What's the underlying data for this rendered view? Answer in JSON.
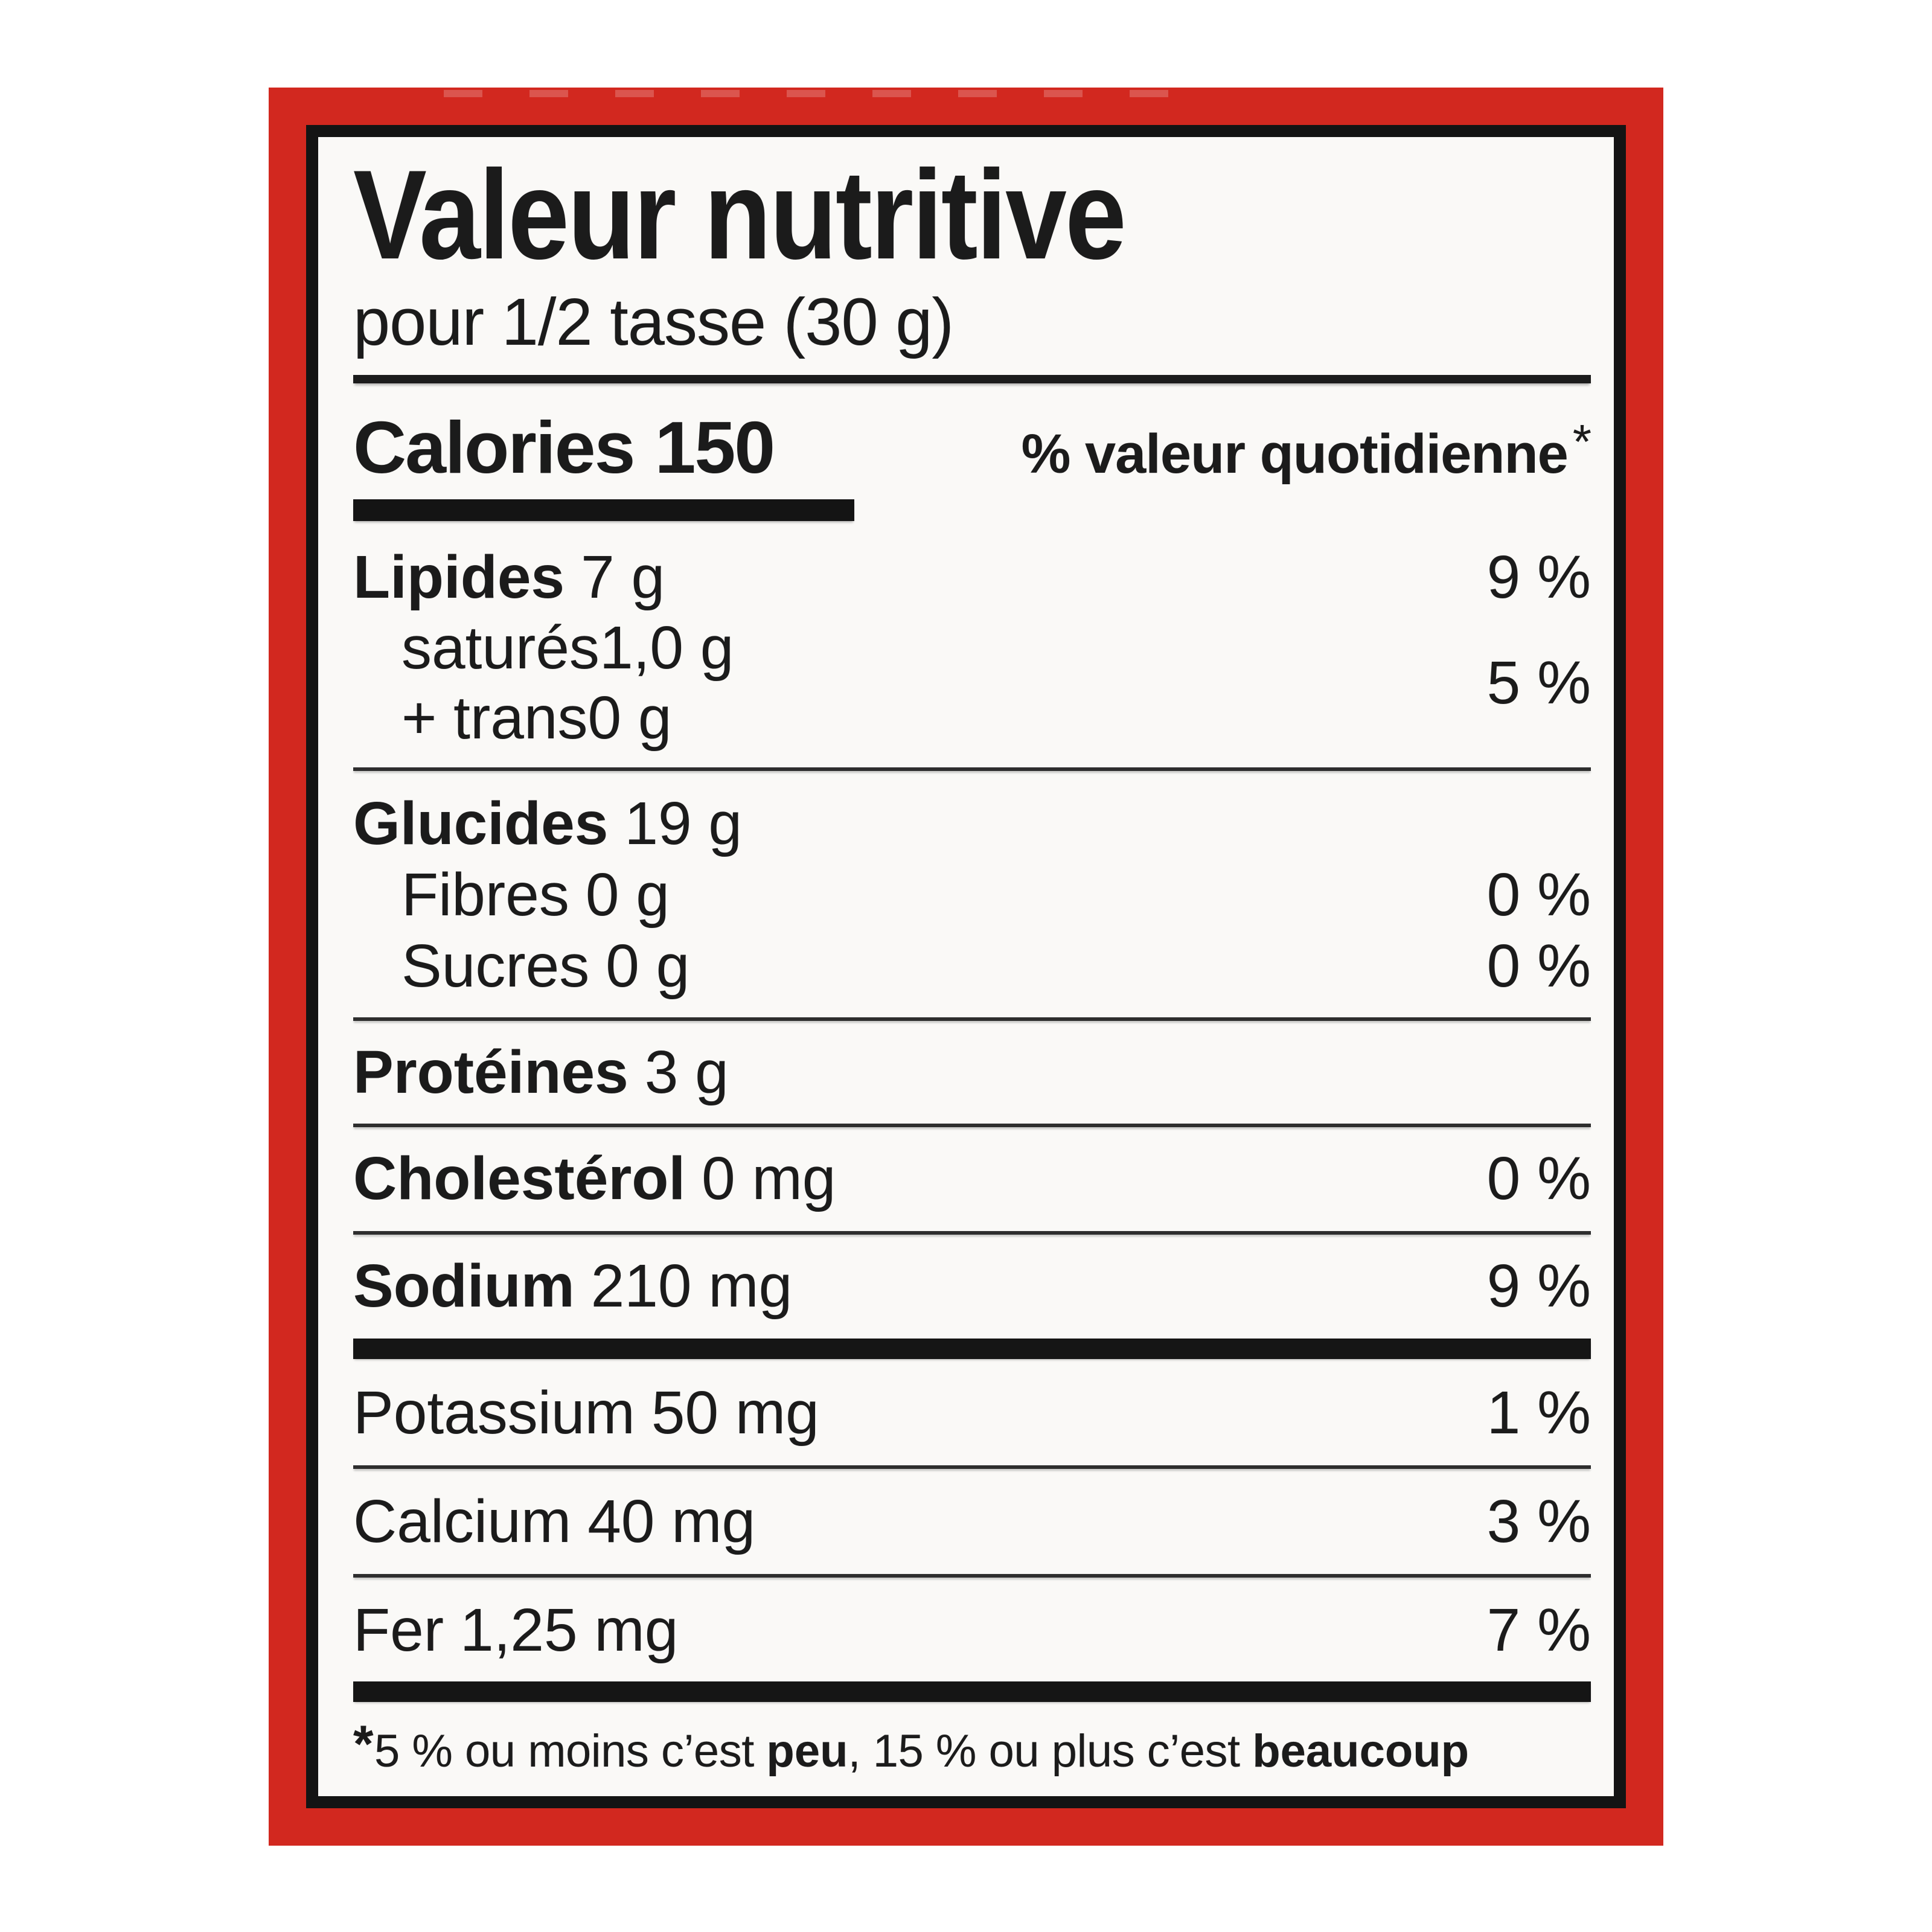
{
  "label": {
    "colors": {
      "frame_red": "#d2281f",
      "border_black": "#141414",
      "panel_background": "#faf9f7",
      "text": "#1b1b1b"
    },
    "title": "Valeur nutritive",
    "serving": "pour 1/2 tasse (30 g)",
    "calories": {
      "label": "Calories",
      "value": "150"
    },
    "dv_header": {
      "text": "% valeur quotidienne",
      "asterisk": "*"
    },
    "nutrients": {
      "fat": {
        "name": "Lipides",
        "amount": "7 g",
        "dv": "9 %"
      },
      "saturated": {
        "name": "saturés",
        "amount": "1,0 g"
      },
      "trans": {
        "name": "+ trans",
        "amount": "0 g"
      },
      "sat_trans_dv": "5 %",
      "carbohydrate": {
        "name": "Glucides",
        "amount": "19 g"
      },
      "fibre": {
        "name": "Fibres",
        "amount": "0 g",
        "dv": "0 %"
      },
      "sugars": {
        "name": "Sucres",
        "amount": "0 g",
        "dv": "0 %"
      },
      "protein": {
        "name": "Protéines",
        "amount": "3 g"
      },
      "cholesterol": {
        "name": "Cholestérol",
        "amount": "0 mg",
        "dv": "0 %"
      },
      "sodium": {
        "name": "Sodium",
        "amount": "210 mg",
        "dv": "9 %"
      },
      "potassium": {
        "name": "Potassium",
        "amount": "50 mg",
        "dv": "1 %"
      },
      "calcium": {
        "name": "Calcium",
        "amount": "40 mg",
        "dv": "3 %"
      },
      "iron": {
        "name": "Fer",
        "amount": "1,25 mg",
        "dv": "7 %"
      }
    },
    "footnote": {
      "asterisk": "*",
      "part1": "5 % ou moins c’est ",
      "bold1": "peu",
      "part2": ", 15 % ou plus c’est ",
      "bold2": "beaucoup"
    }
  }
}
